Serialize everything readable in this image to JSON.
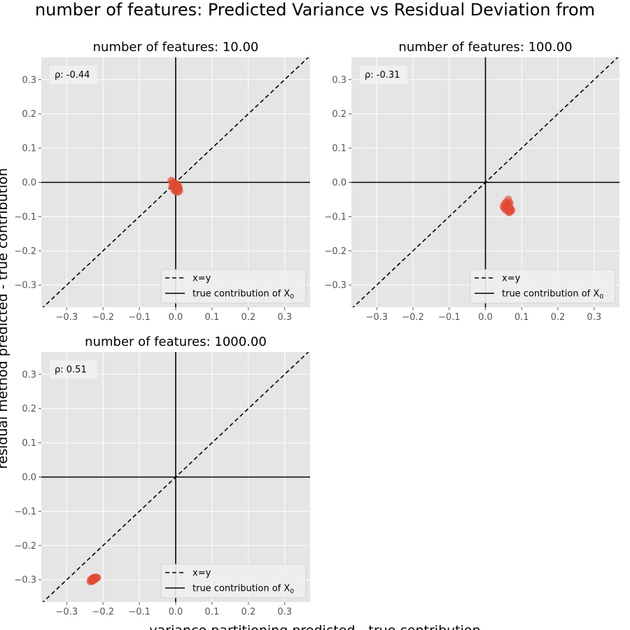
{
  "figure": {
    "suptitle": "number of features: Predicted Variance vs Residual Deviation from",
    "xlabel": "variance partitioning predicted - true contribution",
    "ylabel": "residual method predicted - true contribution"
  },
  "colors": {
    "panel_bg": "#e5e5e5",
    "grid": "#ffffff",
    "points": "#e24a33",
    "lines": "#000000",
    "tick_text": "#555555"
  },
  "legend": {
    "identity_label": "x=y",
    "true_contribution_label": "true contribution of X",
    "true_contribution_subscript": "0",
    "placement": "lower-right"
  },
  "chart_data": [
    {
      "type": "scatter",
      "title": "number of features: 10.00",
      "annotation": "ρ: -0.44",
      "xlim": [
        -0.37,
        0.37
      ],
      "ylim": [
        -0.365,
        0.365
      ],
      "xticks": [
        "−0.3",
        "−0.2",
        "−0.1",
        "0.0",
        "0.1",
        "0.2",
        "0.3"
      ],
      "yticks": [
        "−0.3",
        "−0.2",
        "−0.1",
        "0.0",
        "0.1",
        "0.2",
        "0.3"
      ],
      "grid": true,
      "points": [
        [
          -0.012,
          0.005
        ],
        [
          -0.008,
          -0.002
        ],
        [
          -0.005,
          -0.01
        ],
        [
          -0.002,
          -0.015
        ],
        [
          0.0,
          -0.008
        ],
        [
          0.002,
          -0.018
        ],
        [
          0.004,
          -0.012
        ],
        [
          0.006,
          -0.02
        ],
        [
          0.008,
          -0.015
        ],
        [
          0.01,
          -0.025
        ],
        [
          -0.004,
          -0.022
        ],
        [
          0.0,
          -0.026
        ],
        [
          0.003,
          -0.005
        ],
        [
          -0.01,
          -0.012
        ],
        [
          0.007,
          -0.01
        ],
        [
          -0.006,
          0.0
        ],
        [
          0.005,
          -0.028
        ],
        [
          0.009,
          -0.019
        ],
        [
          -0.001,
          -0.02
        ],
        [
          0.002,
          -0.014
        ]
      ]
    },
    {
      "type": "scatter",
      "title": "number of features: 100.00",
      "annotation": "ρ: -0.31",
      "xlim": [
        -0.37,
        0.37
      ],
      "ylim": [
        -0.365,
        0.365
      ],
      "xticks": [
        "−0.3",
        "−0.2",
        "−0.1",
        "0.0",
        "0.1",
        "0.2",
        "0.3"
      ],
      "yticks": [
        "−0.3",
        "−0.2",
        "−0.1",
        "0.0",
        "0.1",
        "0.2",
        "0.3"
      ],
      "grid": true,
      "points": [
        [
          0.052,
          -0.065
        ],
        [
          0.055,
          -0.072
        ],
        [
          0.058,
          -0.068
        ],
        [
          0.06,
          -0.075
        ],
        [
          0.062,
          -0.062
        ],
        [
          0.064,
          -0.08
        ],
        [
          0.066,
          -0.07
        ],
        [
          0.068,
          -0.085
        ],
        [
          0.07,
          -0.078
        ],
        [
          0.057,
          -0.058
        ],
        [
          0.063,
          -0.05
        ],
        [
          0.054,
          -0.078
        ],
        [
          0.059,
          -0.082
        ],
        [
          0.061,
          -0.066
        ],
        [
          0.067,
          -0.06
        ],
        [
          0.065,
          -0.088
        ],
        [
          0.072,
          -0.082
        ],
        [
          0.056,
          -0.07
        ],
        [
          0.05,
          -0.072
        ],
        [
          0.062,
          -0.074
        ]
      ]
    },
    {
      "type": "scatter",
      "title": "number of features: 1000.00",
      "annotation": "ρ: 0.51",
      "xlim": [
        -0.37,
        0.37
      ],
      "ylim": [
        -0.365,
        0.365
      ],
      "xticks": [
        "−0.3",
        "−0.2",
        "−0.1",
        "0.0",
        "0.1",
        "0.2",
        "0.3"
      ],
      "yticks": [
        "−0.3",
        "−0.2",
        "−0.1",
        "0.0",
        "0.1",
        "0.2",
        "0.3"
      ],
      "grid": true,
      "points": [
        [
          -0.235,
          -0.305
        ],
        [
          -0.232,
          -0.302
        ],
        [
          -0.23,
          -0.3
        ],
        [
          -0.228,
          -0.302
        ],
        [
          -0.226,
          -0.298
        ],
        [
          -0.224,
          -0.296
        ],
        [
          -0.222,
          -0.298
        ],
        [
          -0.22,
          -0.296
        ],
        [
          -0.218,
          -0.294
        ],
        [
          -0.228,
          -0.296
        ],
        [
          -0.224,
          -0.3
        ],
        [
          -0.233,
          -0.299
        ],
        [
          -0.216,
          -0.294
        ],
        [
          -0.23,
          -0.304
        ],
        [
          -0.221,
          -0.293
        ],
        [
          -0.226,
          -0.294
        ]
      ]
    }
  ]
}
